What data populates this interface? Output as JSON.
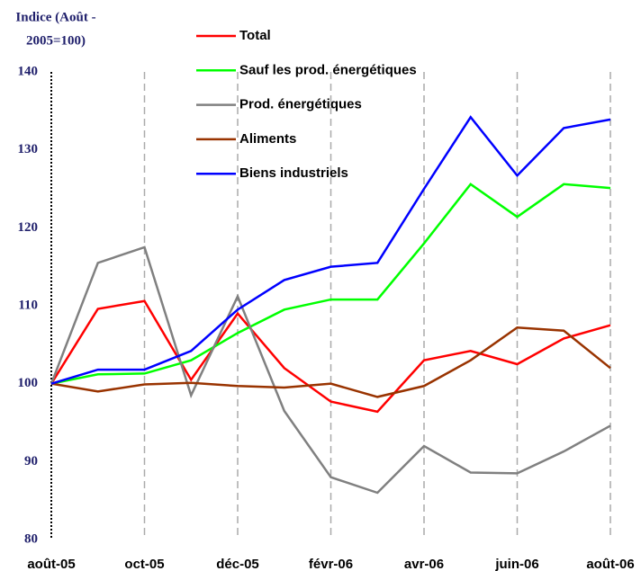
{
  "chart_data": {
    "type": "line",
    "ylabel": [
      "Indice (Août -",
      "2005=100)"
    ],
    "categories": [
      "août-05",
      null,
      "oct-05",
      null,
      "déc-05",
      null,
      "févr-06",
      null,
      "avr-06",
      null,
      "juin-06",
      null,
      "août-06"
    ],
    "series": [
      {
        "name": "Total",
        "color": "#ff0000",
        "values": [
          100,
          109.6,
          110.6,
          100.5,
          109,
          102,
          97.7,
          96.4,
          103,
          104.2,
          102.5,
          105.8,
          107.5
        ]
      },
      {
        "name": "Sauf les prod. énergétiques",
        "color": "#00ff00",
        "values": [
          100,
          101.2,
          101.3,
          103,
          106.5,
          109.5,
          110.8,
          110.8,
          118,
          125.6,
          121.4,
          125.6,
          125.1
        ]
      },
      {
        "name": "Prod. énergétiques",
        "color": "#808080",
        "values": [
          100,
          115.5,
          117.5,
          98.5,
          111.2,
          96.5,
          88,
          86,
          92,
          88.6,
          88.5,
          91.3,
          94.6
        ]
      },
      {
        "name": "Aliments",
        "color": "#993300",
        "values": [
          100,
          99,
          99.9,
          100.1,
          99.7,
          99.5,
          100,
          98.3,
          99.7,
          103,
          107.2,
          106.8,
          102
        ]
      },
      {
        "name": "Biens industriels",
        "color": "#0000ff",
        "values": [
          100,
          101.8,
          101.8,
          104.2,
          109.5,
          113.3,
          115,
          115.5,
          125,
          134.2,
          126.7,
          132.8,
          133.9
        ]
      }
    ],
    "ylim": [
      80,
      140
    ],
    "yticks": [
      80,
      90,
      100,
      110,
      120,
      130,
      140
    ],
    "grid": true
  }
}
